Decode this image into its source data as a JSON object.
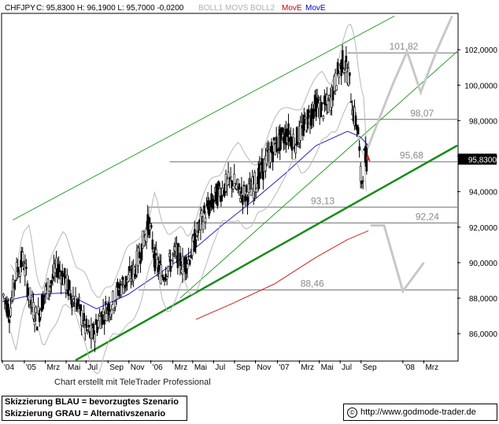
{
  "header": {
    "symbol": "CHFJPY",
    "quote": "C: 95,8300 H: 96,1900 L: 95,7000 -0,0200",
    "indicators": [
      {
        "label": "BOLL1",
        "color": "#b0b0b0"
      },
      {
        "label": "MOVS",
        "color": "#b0b0b0"
      },
      {
        "label": "BOLL2",
        "color": "#b0b0b0"
      },
      {
        "label": "MovE",
        "color": "#cc0000"
      },
      {
        "label": "MovE",
        "color": "#0000cc"
      }
    ]
  },
  "footer": {
    "credit": "Chart erstellt mit TeleTrader Professional",
    "legend_blue": "Skizzierung BLAU = bevorzugtes Szenario",
    "legend_gray": "Skizzierung GRAU = Alternativszenario",
    "url": "http://www.godmode-trader.de",
    "copyright_symbol": "©"
  },
  "chart_data": {
    "type": "candlestick",
    "title": "",
    "ylim": [
      84.5,
      104
    ],
    "y_ticks": [
      86,
      88,
      90,
      92,
      94,
      96,
      98,
      100,
      102
    ],
    "y_tick_labels": [
      "86,0000",
      "88,0000",
      "90,0000",
      "92,0000",
      "94,0000",
      "96,0000",
      "98,0000",
      "100,0000",
      "102,0000"
    ],
    "x_ticks": [
      {
        "t": 0,
        "label": "'04"
      },
      {
        "t": 2.1,
        "label": "'05"
      },
      {
        "t": 4.1,
        "label": "Mrz"
      },
      {
        "t": 6.1,
        "label": "Mai"
      },
      {
        "t": 8.0,
        "label": "Jul"
      },
      {
        "t": 10.1,
        "label": "Sep"
      },
      {
        "t": 12.1,
        "label": "Nov"
      },
      {
        "t": 14.2,
        "label": "'06"
      },
      {
        "t": 16.3,
        "label": "Mrz"
      },
      {
        "t": 18.2,
        "label": "Mai"
      },
      {
        "t": 20.2,
        "label": "Jul"
      },
      {
        "t": 22.2,
        "label": "Sep"
      },
      {
        "t": 24.2,
        "label": "Nov"
      },
      {
        "t": 26.3,
        "label": "'07"
      },
      {
        "t": 28.4,
        "label": "Mrz"
      },
      {
        "t": 30.3,
        "label": "Mai"
      },
      {
        "t": 32.3,
        "label": "Jul"
      },
      {
        "t": 34.3,
        "label": "Sep"
      },
      {
        "t": 38.3,
        "label": "'08"
      },
      {
        "t": 40.3,
        "label": "Mrz"
      }
    ],
    "x_range": [
      0,
      43.5
    ],
    "last_price": 95.83,
    "last_price_label": "95,8300",
    "price_path": [
      [
        0,
        88.3
      ],
      [
        0.7,
        87.2
      ],
      [
        1.3,
        89.4
      ],
      [
        2.0,
        90.2
      ],
      [
        2.6,
        88.0
      ],
      [
        3.3,
        86.8
      ],
      [
        4.0,
        88.2
      ],
      [
        4.6,
        88.8
      ],
      [
        5.3,
        89.8
      ],
      [
        6.0,
        89.0
      ],
      [
        6.6,
        88.2
      ],
      [
        7.3,
        87.5
      ],
      [
        8.0,
        86.2
      ],
      [
        8.6,
        85.8
      ],
      [
        9.3,
        86.9
      ],
      [
        10.0,
        87.4
      ],
      [
        10.6,
        87.8
      ],
      [
        11.3,
        88.7
      ],
      [
        12.0,
        89.0
      ],
      [
        12.6,
        89.5
      ],
      [
        13.3,
        90.8
      ],
      [
        14.0,
        92.3
      ],
      [
        14.6,
        90.2
      ],
      [
        15.3,
        89.3
      ],
      [
        16.0,
        89.9
      ],
      [
        16.6,
        90.6
      ],
      [
        17.3,
        89.8
      ],
      [
        18.0,
        90.5
      ],
      [
        18.6,
        91.6
      ],
      [
        19.3,
        92.7
      ],
      [
        20.0,
        93.3
      ],
      [
        20.6,
        93.9
      ],
      [
        21.3,
        94.3
      ],
      [
        22.0,
        94.6
      ],
      [
        22.6,
        94.0
      ],
      [
        23.3,
        93.8
      ],
      [
        24.0,
        94.3
      ],
      [
        24.6,
        94.9
      ],
      [
        25.3,
        95.8
      ],
      [
        26.0,
        96.5
      ],
      [
        26.6,
        96.9
      ],
      [
        27.3,
        97.3
      ],
      [
        28.0,
        96.8
      ],
      [
        28.6,
        97.4
      ],
      [
        29.3,
        98.2
      ],
      [
        30.0,
        98.9
      ],
      [
        30.6,
        98.6
      ],
      [
        31.3,
        99.0
      ],
      [
        32.0,
        100.5
      ],
      [
        32.6,
        101.4
      ],
      [
        33.1,
        100.6
      ],
      [
        33.6,
        98.3
      ],
      [
        34.0,
        97.6
      ],
      [
        34.3,
        94.3
      ],
      [
        34.6,
        95.9
      ],
      [
        34.9,
        95.83
      ]
    ],
    "levels": [
      {
        "value": 101.82,
        "label": "101,82"
      },
      {
        "value": 98.07,
        "label": "98,07"
      },
      {
        "value": 95.68,
        "label": "95,68"
      },
      {
        "value": 93.13,
        "label": "93,13"
      },
      {
        "value": 92.24,
        "label": "92,24"
      },
      {
        "value": 88.46,
        "label": "88,46"
      }
    ],
    "series": [
      {
        "kind": "trend",
        "color": "#1a8a1a",
        "points": [
          [
            7.0,
            84.5
          ],
          [
            43.5,
            96.6
          ]
        ]
      },
      {
        "kind": "channel",
        "color": "#2e9e2e",
        "points": [
          [
            1.0,
            92.4
          ],
          [
            37.5,
            103.9
          ]
        ]
      },
      {
        "kind": "channel",
        "color": "#2e9e2e",
        "points": [
          [
            17.0,
            88.0
          ],
          [
            43.5,
            101.9
          ]
        ]
      },
      {
        "kind": "sma-red",
        "color": "#d42020",
        "points": [
          [
            18.5,
            86.8
          ],
          [
            22.0,
            87.7
          ],
          [
            26.0,
            88.8
          ],
          [
            30.0,
            90.3
          ],
          [
            33.0,
            91.3
          ],
          [
            35.0,
            91.8
          ]
        ]
      },
      {
        "kind": "sma-blue",
        "color": "#2020c8",
        "points": [
          [
            0,
            87.8
          ],
          [
            3.0,
            88.2
          ],
          [
            6.0,
            88.3
          ],
          [
            9.0,
            87.4
          ],
          [
            12.0,
            88.2
          ],
          [
            15.0,
            89.4
          ],
          [
            18.0,
            90.6
          ],
          [
            21.0,
            92.1
          ],
          [
            24.0,
            93.5
          ],
          [
            27.0,
            95.0
          ],
          [
            30.0,
            96.6
          ],
          [
            33.0,
            97.4
          ],
          [
            34.2,
            97.1
          ],
          [
            35.0,
            96.6
          ]
        ]
      },
      {
        "kind": "scenario-gray",
        "color": "#c8c8c8",
        "points": [
          [
            34.9,
            96.4
          ],
          [
            37.3,
            100.0
          ],
          [
            38.7,
            101.9
          ],
          [
            40.0,
            99.6
          ],
          [
            41.5,
            101.9
          ],
          [
            43.0,
            103.9
          ]
        ]
      },
      {
        "kind": "scenario-gray",
        "color": "#c8c8c8",
        "points": [
          [
            35.2,
            92.1
          ],
          [
            36.5,
            92.1
          ],
          [
            38.3,
            88.4
          ],
          [
            40.3,
            90.0
          ]
        ]
      }
    ]
  }
}
